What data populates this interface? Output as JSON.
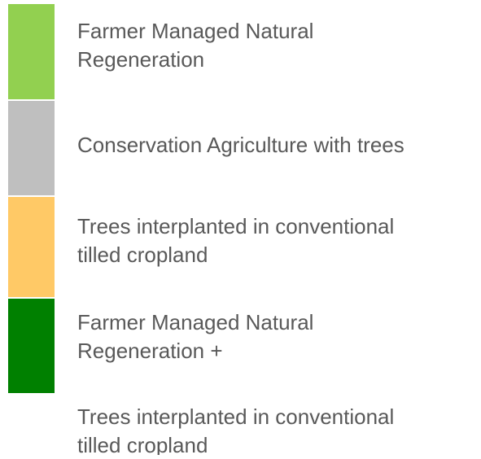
{
  "legend": {
    "items": [
      {
        "color": "#92d050",
        "paragraphs": [
          [
            "Farmer Managed Natural",
            "Regeneration"
          ]
        ]
      },
      {
        "color": "#bfbfbf",
        "paragraphs": [
          [
            "Conservation Agriculture with trees"
          ]
        ]
      },
      {
        "color": "#ffc966",
        "paragraphs": [
          [
            "Trees interplanted in conventional",
            "tilled cropland"
          ]
        ]
      },
      {
        "color": "#008000",
        "paragraphs": [
          [
            "Farmer Managed Natural",
            "Regeneration +"
          ],
          [
            "Trees interplanted in conventional",
            "tilled cropland"
          ]
        ]
      }
    ]
  }
}
